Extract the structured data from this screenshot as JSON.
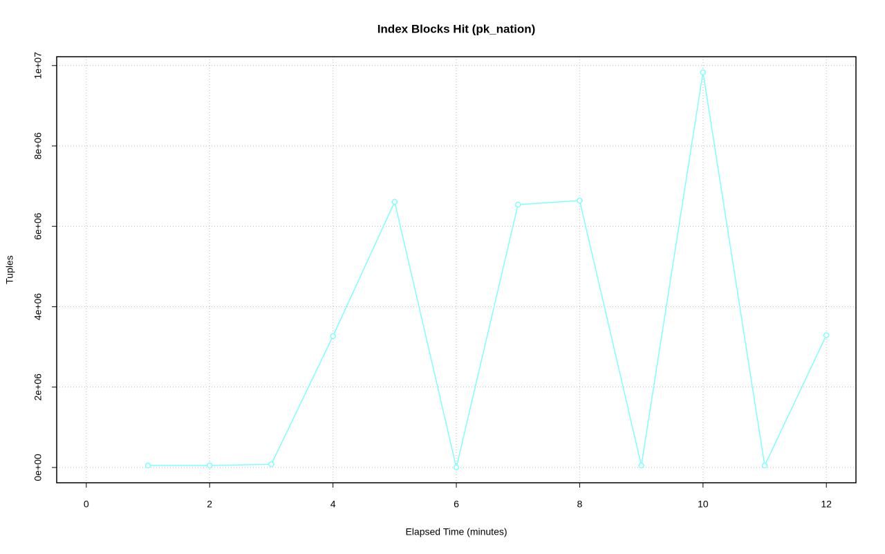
{
  "chart_data": {
    "type": "line",
    "title": "Index Blocks Hit (pk_nation)",
    "x_label": "Elapsed Time (minutes)",
    "y_label": "Tuples",
    "x": [
      1,
      2,
      3,
      4,
      5,
      6,
      7,
      8,
      9,
      10,
      11,
      12
    ],
    "values": [
      50000,
      50000,
      80000,
      3270000,
      6610000,
      0,
      6540000,
      6640000,
      50000,
      9830000,
      50000,
      3290000
    ],
    "color": "#7fffff",
    "xlim": [
      -0.48,
      12.48
    ],
    "ylim": [
      -380000,
      10220000
    ],
    "xticks": [
      0,
      2,
      4,
      6,
      8,
      10,
      12
    ],
    "yticks": [
      {
        "value": 0,
        "label": "0e+00"
      },
      {
        "value": 2000000,
        "label": "2e+06"
      },
      {
        "value": 4000000,
        "label": "4e+06"
      },
      {
        "value": 6000000,
        "label": "6e+06"
      },
      {
        "value": 8000000,
        "label": "8e+06"
      },
      {
        "value": 10000000,
        "label": "1e+07"
      }
    ],
    "grid": true
  }
}
